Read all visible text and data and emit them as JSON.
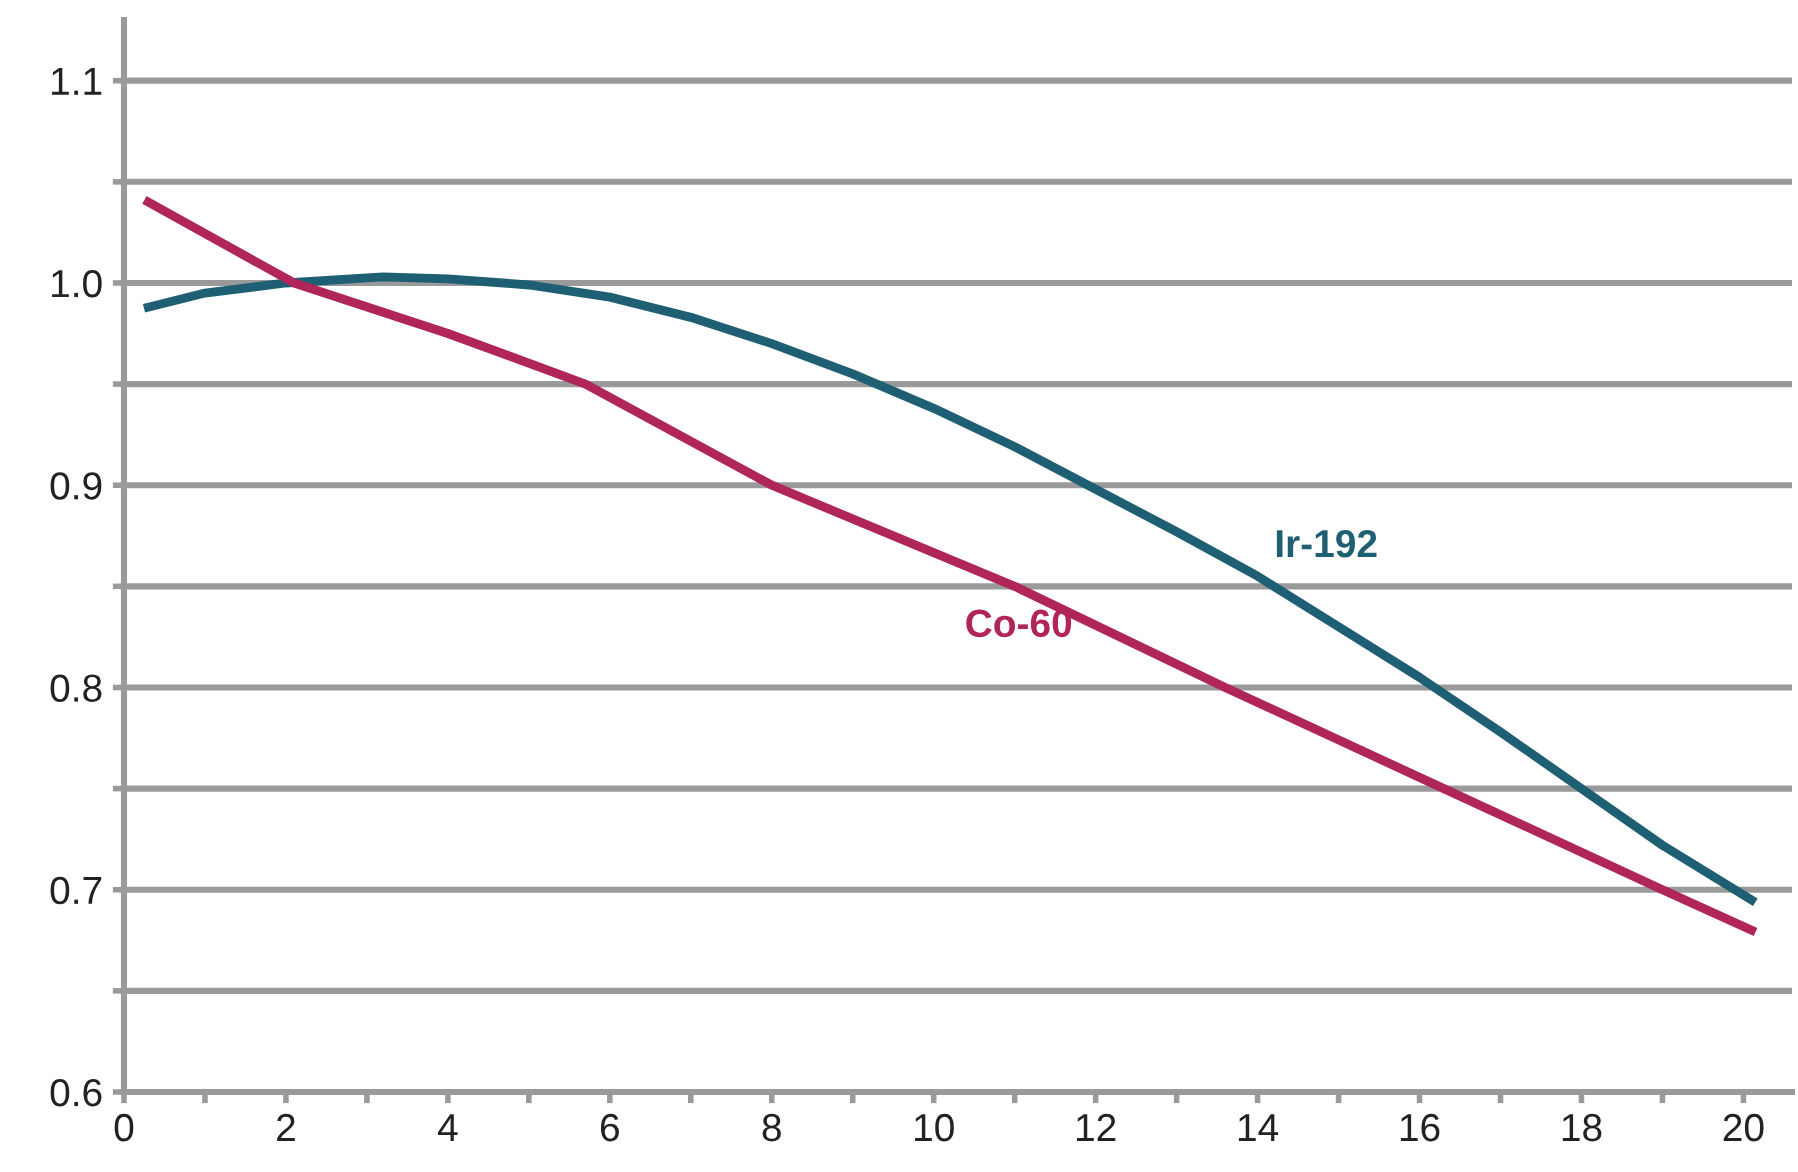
{
  "chart_data": {
    "type": "line",
    "series": [
      {
        "name": "Ir-192",
        "color": "#1f5f73",
        "x": [
          0.3,
          1,
          2,
          3.2,
          4,
          5,
          6,
          7,
          8,
          9,
          10,
          11,
          12,
          13,
          14,
          15,
          16,
          17,
          18,
          19,
          20.1
        ],
        "values": [
          0.988,
          0.995,
          1.0,
          1.003,
          1.002,
          0.999,
          0.993,
          0.983,
          0.97,
          0.955,
          0.938,
          0.919,
          0.898,
          0.877,
          0.855,
          0.83,
          0.805,
          0.778,
          0.75,
          0.722,
          0.695
        ]
      },
      {
        "name": "Co-60",
        "color": "#b0255a",
        "x": [
          0.3,
          2.1,
          4,
          5.7,
          8,
          11,
          13.6,
          16.3,
          19,
          20.1
        ],
        "values": [
          1.04,
          1.0,
          0.975,
          0.95,
          0.9,
          0.85,
          0.8,
          0.75,
          0.7,
          0.68
        ]
      }
    ],
    "xlim": [
      0,
      20.6
    ],
    "ylim": [
      0.6,
      1.13
    ],
    "xticks": [
      0,
      {
        "value": 1,
        "label": null
      },
      2,
      {
        "value": 3,
        "label": null
      },
      4,
      {
        "value": 5,
        "label": null
      },
      6,
      {
        "value": 7,
        "label": null
      },
      8,
      {
        "value": 9,
        "label": null
      },
      10,
      {
        "value": 11,
        "label": null
      },
      12,
      {
        "value": 13,
        "label": null
      },
      14,
      {
        "value": 15,
        "label": null
      },
      16,
      {
        "value": 17,
        "label": null
      },
      18,
      {
        "value": 19,
        "label": null
      },
      20
    ],
    "yticks": [
      {
        "value": 0.6,
        "label": "0.6"
      },
      {
        "value": 0.65,
        "label": null
      },
      {
        "value": 0.7,
        "label": "0.7"
      },
      {
        "value": 0.75,
        "label": null
      },
      {
        "value": 0.8,
        "label": "0.8"
      },
      {
        "value": 0.85,
        "label": null
      },
      {
        "value": 0.9,
        "label": "0.9"
      },
      {
        "value": 0.95,
        "label": null
      },
      {
        "value": 1.0,
        "label": "1.0"
      },
      {
        "value": 1.05,
        "label": null
      },
      {
        "value": 1.1,
        "label": "1.1"
      }
    ],
    "grid": "y",
    "legend": false,
    "marker": "none",
    "line_style": "solid"
  }
}
